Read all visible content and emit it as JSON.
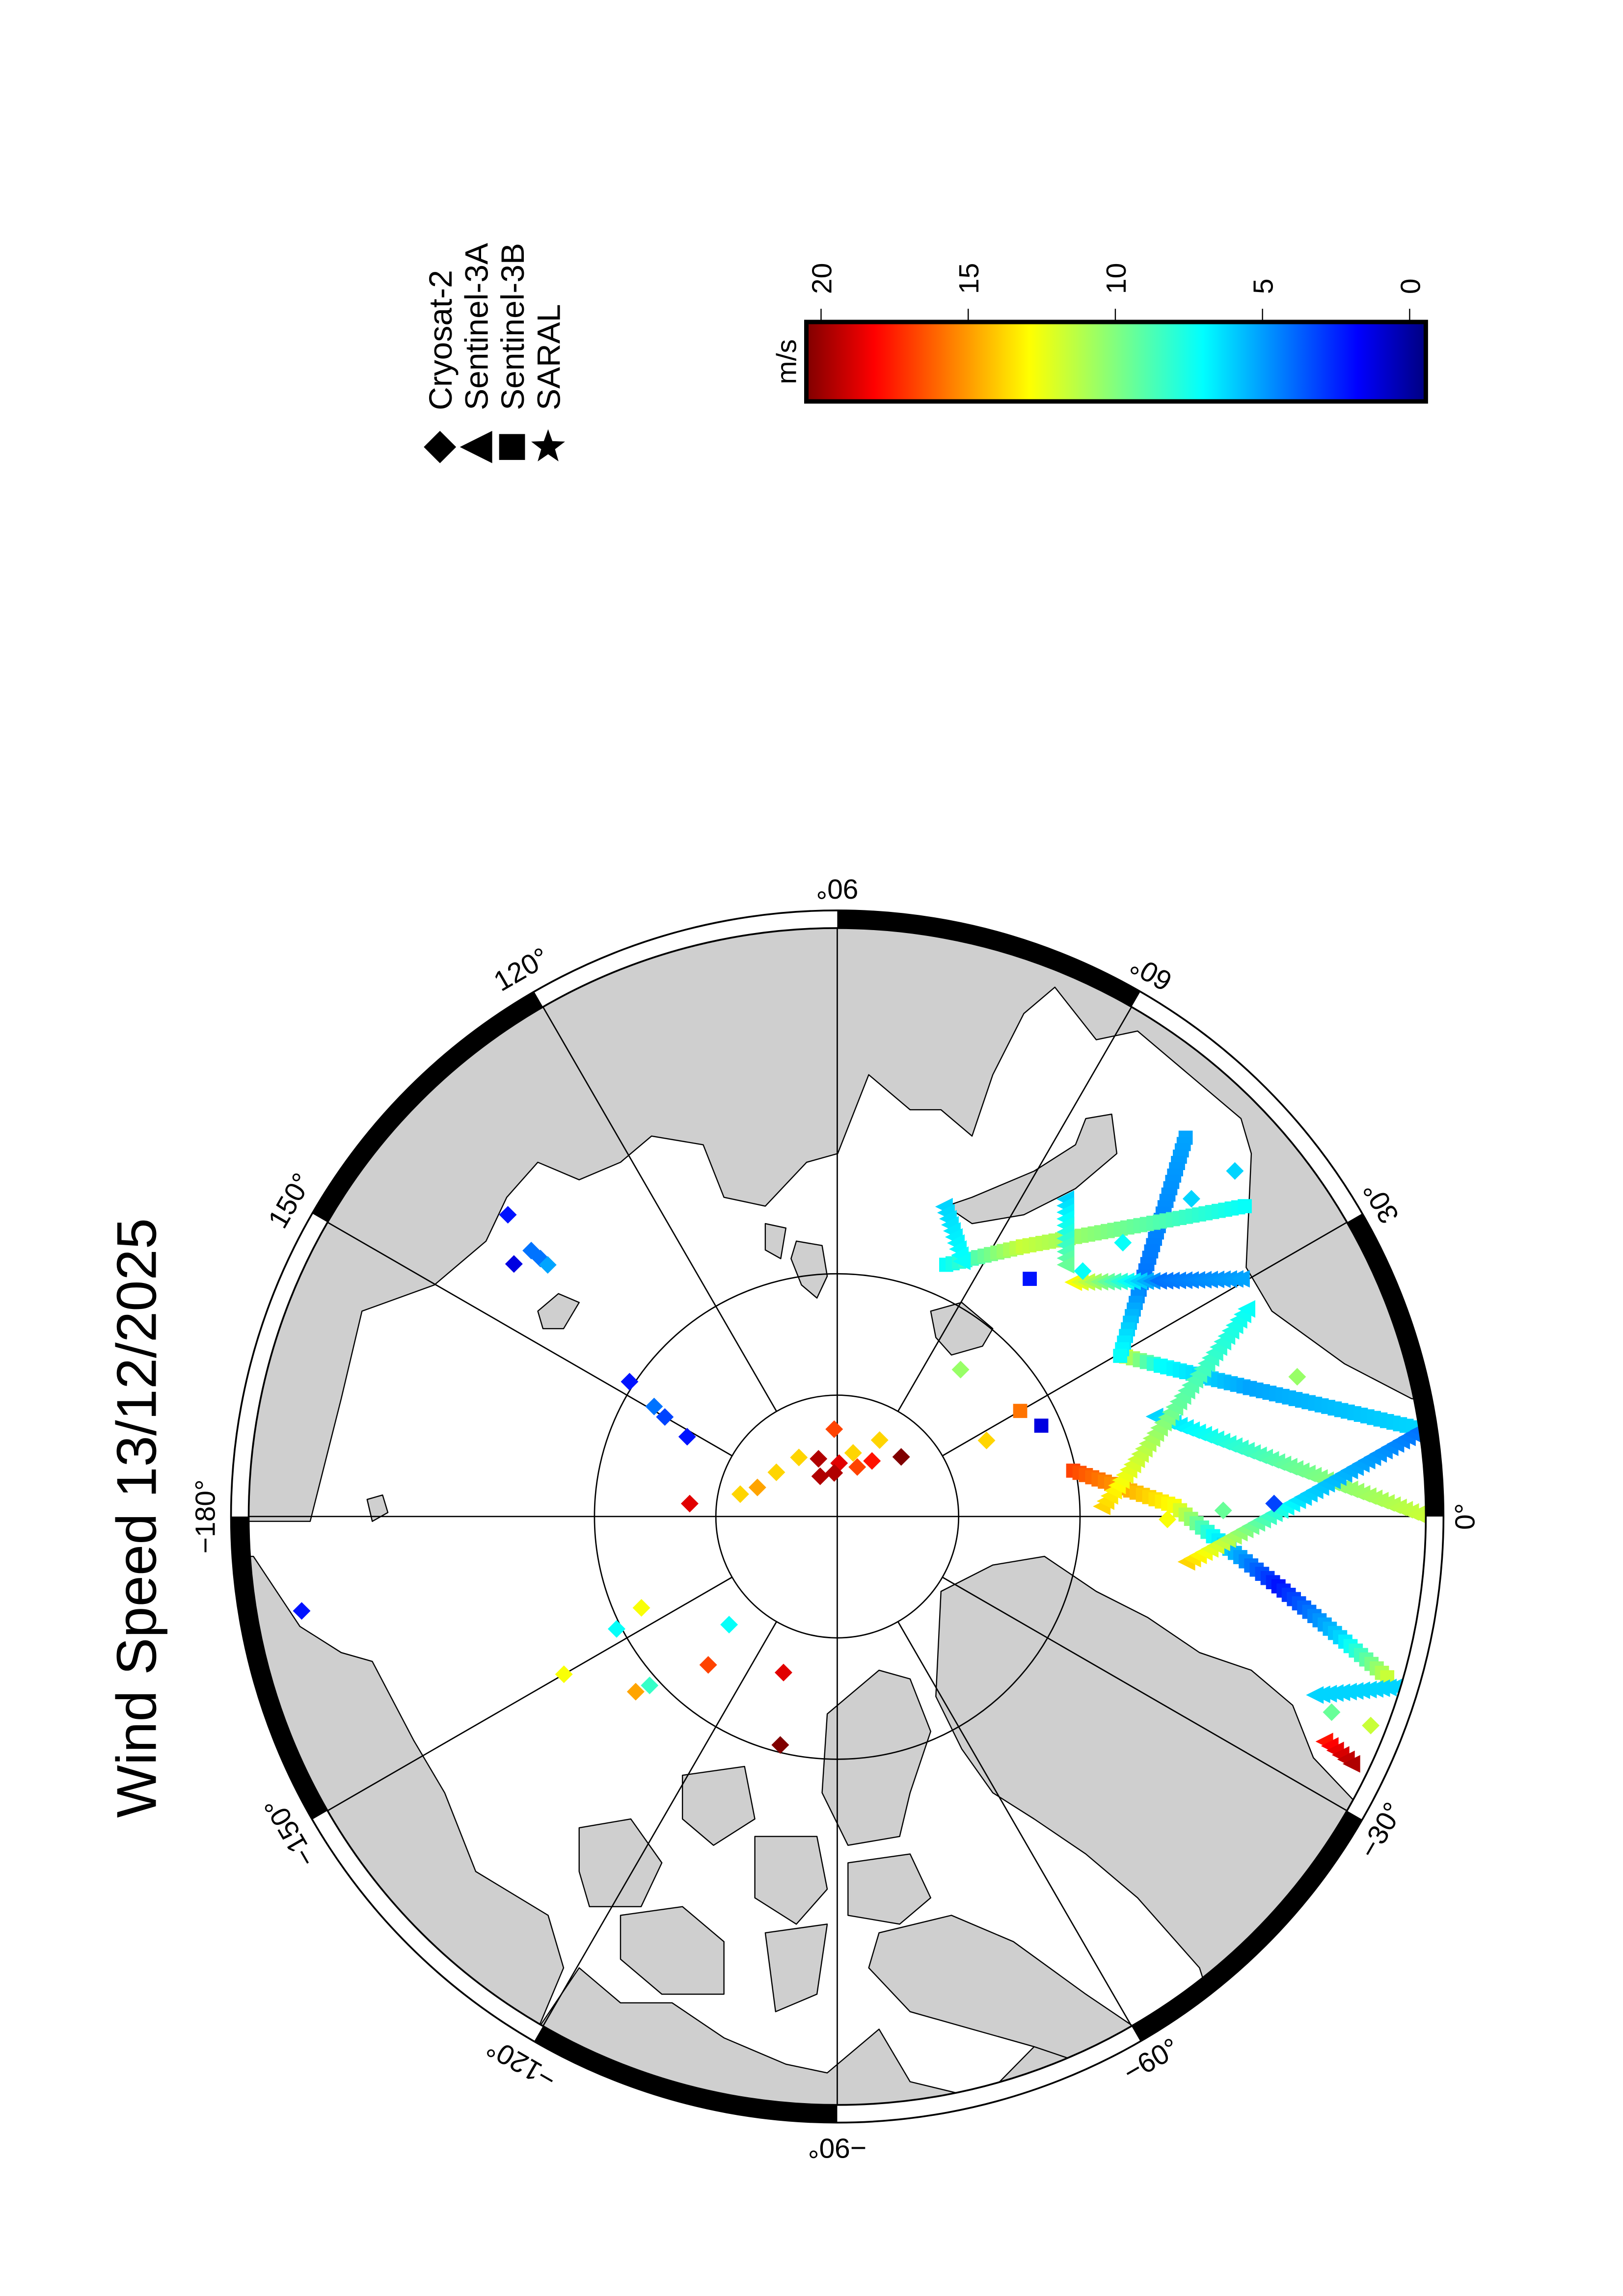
{
  "title": "Wind Speed 13/12/2025",
  "legend": {
    "items": [
      {
        "label": "Cryosat-2",
        "symbol": "diamond"
      },
      {
        "label": "Sentinel-3A",
        "symbol": "triangle"
      },
      {
        "label": "Sentinel-3B",
        "symbol": "square"
      },
      {
        "label": "SARAL",
        "symbol": "star"
      }
    ]
  },
  "colorbar": {
    "unit": "m/s",
    "ticks": [
      20,
      15,
      10,
      5,
      0
    ],
    "tick_labels": [
      "20",
      "15",
      "10",
      "5",
      "0"
    ],
    "colormap": "jet",
    "range": [
      0,
      20
    ]
  },
  "colors": {
    "land": "#cfcfcf",
    "ocean": "#ffffff",
    "frame": "#000000"
  },
  "chart_data": {
    "type": "scatter",
    "projection": "north-polar",
    "title": "Wind Speed 13/12/2025",
    "value_unit": "m/s",
    "color_range": [
      0,
      20
    ],
    "lat_circles": [
      85,
      80
    ],
    "meridians": [
      0,
      30,
      60,
      90,
      120,
      150,
      180,
      -150,
      -120,
      -90,
      -60,
      -30
    ],
    "lon_labels": [
      {
        "lon": 0,
        "text": "0°"
      },
      {
        "lon": 30,
        "text": "30°"
      },
      {
        "lon": 60,
        "text": "60°"
      },
      {
        "lon": 90,
        "text": "90°"
      },
      {
        "lon": 120,
        "text": "120°"
      },
      {
        "lon": 150,
        "text": "150°"
      },
      {
        "lon": 180,
        "text": "−180°"
      },
      {
        "lon": -150,
        "text": "−150°"
      },
      {
        "lon": -120,
        "text": "−120°"
      },
      {
        "lon": -90,
        "text": "−90°"
      },
      {
        "lon": -60,
        "text": "−60°"
      },
      {
        "lon": -30,
        "text": "−30°"
      }
    ],
    "points": [
      {
        "sat": "Cryosat-2",
        "lon": 92,
        "lat": 86.4,
        "speed": 17
      },
      {
        "sat": "Cryosat-2",
        "lon": 61,
        "lat": 86.4,
        "speed": 14
      },
      {
        "sat": "Cryosat-2",
        "lon": 123,
        "lat": 87.1,
        "speed": 14
      },
      {
        "sat": "Cryosat-2",
        "lon": 108,
        "lat": 87.5,
        "speed": 20
      },
      {
        "sat": "Cryosat-2",
        "lon": 88,
        "lat": 87.8,
        "speed": 19
      },
      {
        "sat": "Cryosat-2",
        "lon": 76,
        "lat": 87.3,
        "speed": 14
      },
      {
        "sat": "Cryosat-2",
        "lon": 113,
        "lat": 88.2,
        "speed": 20
      },
      {
        "sat": "Cryosat-2",
        "lon": 94,
        "lat": 88.2,
        "speed": 20
      },
      {
        "sat": "Cryosat-2",
        "lon": 68,
        "lat": 87.8,
        "speed": 17
      },
      {
        "sat": "Cryosat-2",
        "lon": 58,
        "lat": 87.3,
        "speed": 18
      },
      {
        "sat": "Cryosat-2",
        "lon": 43,
        "lat": 86.4,
        "speed": 21
      },
      {
        "sat": "Cryosat-2",
        "lon": 144,
        "lat": 86.9,
        "speed": 14
      },
      {
        "sat": "Cryosat-2",
        "lon": 160,
        "lat": 86.5,
        "speed": 15
      },
      {
        "sat": "Cryosat-2",
        "lon": 167,
        "lat": 85.9,
        "speed": 14
      },
      {
        "sat": "Cryosat-2",
        "lon": 175,
        "lat": 83.9,
        "speed": 19
      },
      {
        "sat": "Cryosat-2",
        "lon": 147,
        "lat": 79.8,
        "speed": 3
      },
      {
        "sat": "Cryosat-2",
        "lon": 149,
        "lat": 81.2,
        "speed": 5
      },
      {
        "sat": "Cryosat-2",
        "lon": 150,
        "lat": 81.8,
        "speed": 4
      },
      {
        "sat": "Cryosat-2",
        "lon": 152,
        "lat": 83.0,
        "speed": 3
      },
      {
        "sat": "Cryosat-2",
        "lon": 142,
        "lat": 73.1,
        "speed": 2
      },
      {
        "sat": "Cryosat-2",
        "lon": 139,
        "lat": 73.3,
        "speed": 5
      },
      {
        "sat": "Cryosat-2",
        "lon": 139,
        "lat": 73.8,
        "speed": 5
      },
      {
        "sat": "Cryosat-2",
        "lon": 139,
        "lat": 74.2,
        "speed": 6
      },
      {
        "sat": "Cryosat-2",
        "lon": 137.5,
        "lat": 71.6,
        "speed": 3
      },
      {
        "sat": "Cryosat-2",
        "lon": -170,
        "lat": 67.6,
        "speed": 3
      },
      {
        "sat": "Cryosat-2",
        "lon": -155,
        "lat": 81.1,
        "speed": 13
      },
      {
        "sat": "Cryosat-2",
        "lon": -153,
        "lat": 79.8,
        "speed": 8
      },
      {
        "sat": "Cryosat-2",
        "lon": -135,
        "lat": 83.7,
        "speed": 8
      },
      {
        "sat": "Cryosat-2",
        "lon": -131,
        "lat": 81.9,
        "speed": 17
      },
      {
        "sat": "Cryosat-2",
        "lon": -109,
        "lat": 83.2,
        "speed": 19
      },
      {
        "sat": "Cryosat-2",
        "lon": -150,
        "lat": 77.0,
        "speed": 13
      },
      {
        "sat": "Cryosat-2",
        "lon": -139,
        "lat": 79.0,
        "speed": 15
      },
      {
        "sat": "Cryosat-2",
        "lon": -138,
        "lat": 79.6,
        "speed": 9
      },
      {
        "sat": "Cryosat-2",
        "lon": -104,
        "lat": 80.3,
        "speed": 21
      },
      {
        "sat": "Cryosat-2",
        "lon": 27,
        "lat": 83.1,
        "speed": 14
      },
      {
        "sat": "Cryosat-2",
        "lon": 50,
        "lat": 82.1,
        "speed": 11
      },
      {
        "sat": "Cryosat-2",
        "lon": 41,
        "lat": 68.3,
        "speed": 7
      },
      {
        "sat": "Cryosat-2",
        "lon": 41.9,
        "lat": 70.4,
        "speed": 7
      },
      {
        "sat": "Cryosat-2",
        "lon": 43.8,
        "lat": 73.7,
        "speed": 8
      },
      {
        "sat": "Cryosat-2",
        "lon": 45,
        "lat": 75.7,
        "speed": 8
      },
      {
        "sat": "Cryosat-2",
        "lon": 16.9,
        "lat": 70.2,
        "speed": 11
      },
      {
        "sat": "Cryosat-2",
        "lon": 1.7,
        "lat": 72.0,
        "speed": 4
      },
      {
        "sat": "Cryosat-2",
        "lon": 0.9,
        "lat": 74.1,
        "speed": 10
      },
      {
        "sat": "Cryosat-2",
        "lon": -0.5,
        "lat": 76.4,
        "speed": 13
      },
      {
        "sat": "Cryosat-2",
        "lon": -21.6,
        "lat": 68.1,
        "speed": 10
      },
      {
        "sat": "Cryosat-2",
        "lon": -21.4,
        "lat": 66.4,
        "speed": 12
      },
      {
        "sat": "Sentinel-3B",
        "lon": 30,
        "lat": 81.3,
        "speed": 16
      },
      {
        "sat": "Sentinel-3B",
        "lon": 24,
        "lat": 80.8,
        "speed": 2
      },
      {
        "sat": "Sentinel-3B",
        "lon": 51,
        "lat": 77.4,
        "speed": 3
      }
    ],
    "tracks": [
      {
        "sat": "Sentinel-3B",
        "points": [
          [
            11,
            80.1,
            17
          ],
          [
            1.8,
            76.1,
            13
          ],
          [
            -3,
            74.5,
            8
          ],
          [
            -9,
            71.6,
            3
          ],
          [
            -13.5,
            68.7,
            7
          ],
          [
            -16.3,
            66.4,
            12
          ]
        ]
      },
      {
        "sat": "Sentinel-3B",
        "points": [
          [
            29,
            76.4,
            12
          ],
          [
            25,
            75.3,
            8
          ],
          [
            17.3,
            72.2,
            6
          ],
          [
            8.8,
            66.0,
            7
          ]
        ]
      },
      {
        "sat": "Sentinel-3B",
        "points": [
          [
            47.4,
            68.8,
            6
          ],
          [
            37.5,
            74.2,
            5
          ],
          [
            29.6,
            76.6,
            8
          ]
        ]
      },
      {
        "sat": "Sentinel-3B",
        "points": [
          [
            66.6,
            78.7,
            8
          ],
          [
            55.5,
            76.5,
            12
          ],
          [
            37.3,
            68.9,
            8
          ]
        ]
      },
      {
        "sat": "Sentinel-3A",
        "points": [
          [
            71,
            76.5,
            7
          ],
          [
            64,
            78.3,
            8
          ]
        ]
      },
      {
        "sat": "Sentinel-3A",
        "points": [
          [
            54.3,
            73.9,
            7
          ],
          [
            47.8,
            76.0,
            10
          ]
        ]
      },
      {
        "sat": "Sentinel-3A",
        "points": [
          [
            44.8,
            76.3,
            13
          ],
          [
            36.3,
            73.6,
            5
          ],
          [
            30.5,
            70.7,
            6
          ]
        ]
      },
      {
        "sat": "Sentinel-3A",
        "points": [
          [
            17.5,
            76.3,
            7
          ],
          [
            6.3,
            71.3,
            10
          ],
          [
            0,
            65.9,
            12
          ]
        ]
      },
      {
        "sat": "Sentinel-3A",
        "points": [
          [
            -7.4,
            75.5,
            14
          ],
          [
            2.4,
            70.8,
            7
          ],
          [
            8.4,
            65.8,
            5
          ]
        ]
      },
      {
        "sat": "Sentinel-3A",
        "points": [
          [
            2.2,
            79.1,
            14
          ],
          [
            18,
            75.4,
            10
          ],
          [
            26.9,
            71.1,
            8
          ]
        ]
      },
      {
        "sat": "Sentinel-3A",
        "points": [
          [
            -20.5,
            69.0,
            7
          ],
          [
            -17,
            66.0,
            7
          ]
        ]
      },
      {
        "sat": "Sentinel-3A",
        "points": [
          [
            -24.8,
            67.9,
            18
          ],
          [
            -25.7,
            66.5,
            20
          ]
        ]
      }
    ]
  }
}
